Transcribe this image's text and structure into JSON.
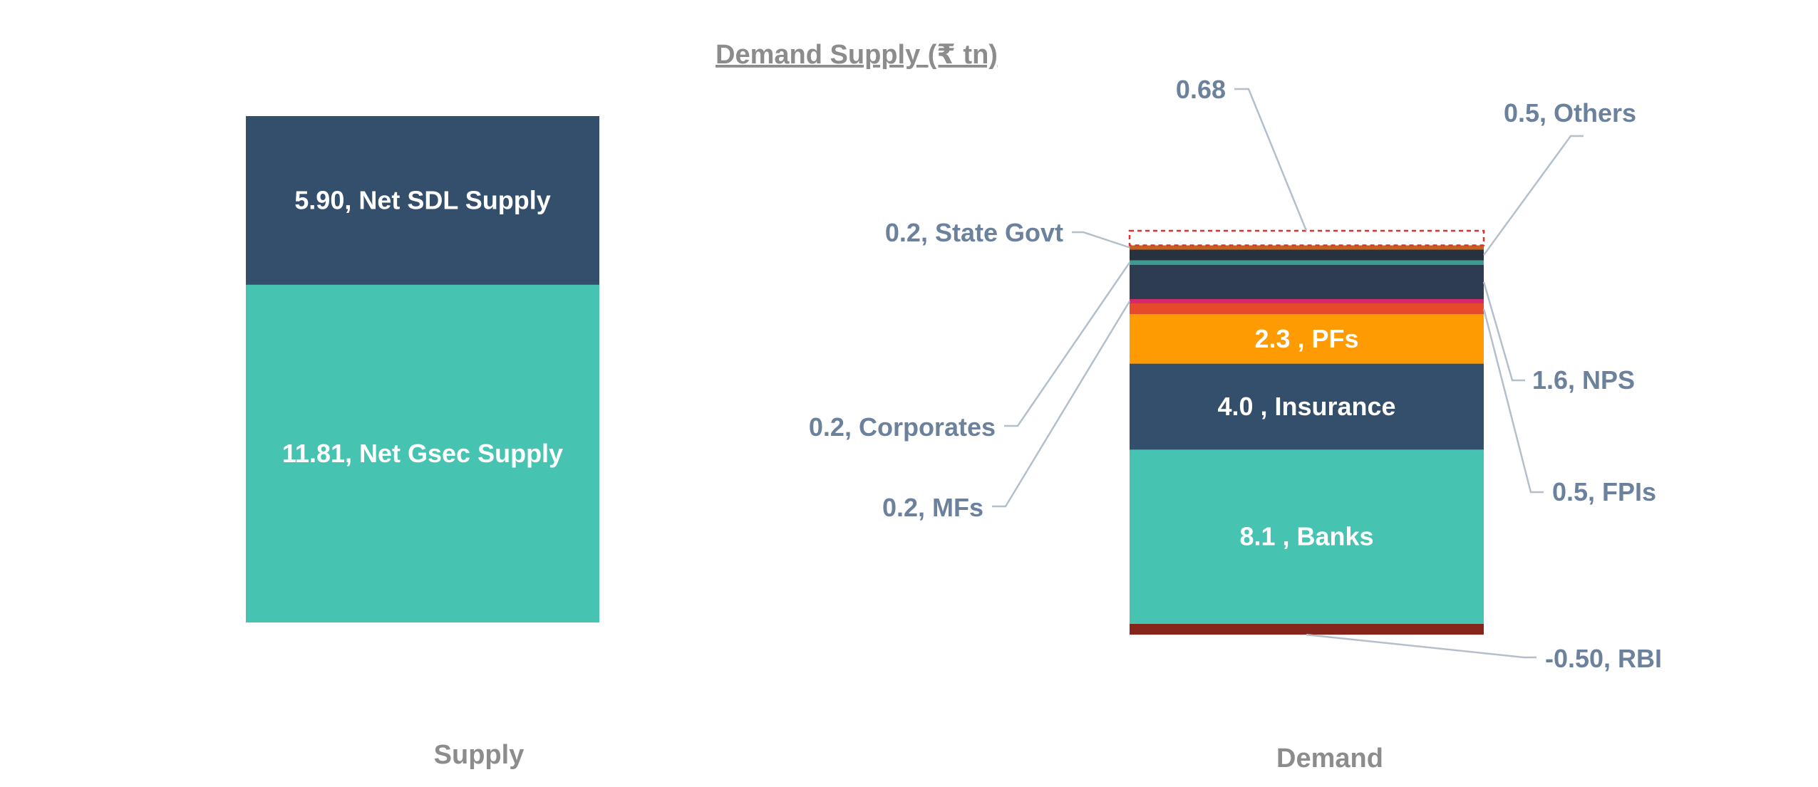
{
  "chart_data": {
    "type": "bar",
    "stacked": true,
    "title": "Demand Supply (₹ tn)",
    "categories": [
      "Supply",
      "Demand"
    ],
    "supply": [
      {
        "name": "Net Gsec Supply",
        "value": 11.81,
        "label": "11.81, Net Gsec Supply",
        "color": "#47c3b1"
      },
      {
        "name": "Net SDL Supply",
        "value": 5.9,
        "label": "5.90, Net SDL Supply",
        "color": "#344f6b"
      }
    ],
    "demand": [
      {
        "name": "RBI",
        "value": -0.5,
        "label": "-0.50, RBI",
        "color": "#86251b",
        "inside": false
      },
      {
        "name": "Banks",
        "value": 8.1,
        "label": "8.1 , Banks",
        "color": "#47c3b1",
        "inside": true
      },
      {
        "name": "Insurance",
        "value": 4.0,
        "label": "4.0 , Insurance",
        "color": "#344f6b",
        "inside": true
      },
      {
        "name": "PFs",
        "value": 2.3,
        "label": "2.3 , PFs",
        "color": "#fe9a02",
        "inside": true
      },
      {
        "name": "FPIs",
        "value": 0.5,
        "label": "0.5, FPIs",
        "color": "#e64a2c",
        "inside": false
      },
      {
        "name": "MFs",
        "value": 0.2,
        "label": "0.2, MFs",
        "color": "#d6286b",
        "inside": false
      },
      {
        "name": "NPS",
        "value": 1.6,
        "label": "1.6, NPS",
        "color": "#2d3c51",
        "inside": false
      },
      {
        "name": "Corporates",
        "value": 0.2,
        "label": "0.2, Corporates",
        "color": "#3f9a92",
        "inside": false
      },
      {
        "name": "Others",
        "value": 0.5,
        "label": "0.5, Others",
        "color": "#26323f",
        "inside": false
      },
      {
        "name": "State Govt",
        "value": 0.2,
        "label": "0.2, State Govt",
        "color": "#c5601e",
        "inside": false
      }
    ],
    "gap": {
      "value": 0.68,
      "label": "0.68",
      "color": "#e03030"
    },
    "xlabel": "",
    "ylabel": ""
  }
}
